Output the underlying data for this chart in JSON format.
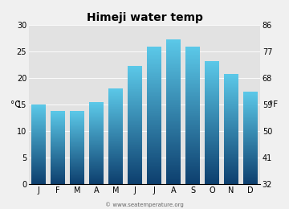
{
  "title": "Himeji water temp",
  "months": [
    "J",
    "F",
    "M",
    "A",
    "M",
    "J",
    "J",
    "A",
    "S",
    "O",
    "N",
    "D"
  ],
  "values_c": [
    15.0,
    13.8,
    13.8,
    15.4,
    18.1,
    22.3,
    25.9,
    27.3,
    25.9,
    23.2,
    20.8,
    17.4
  ],
  "ylim_c": [
    0,
    30
  ],
  "yticks_c": [
    0,
    5,
    10,
    15,
    20,
    25,
    30
  ],
  "yticks_f": [
    32,
    41,
    50,
    59,
    68,
    77,
    86
  ],
  "ylabel_left": "°C",
  "ylabel_right": "°F",
  "bar_color_top": "#5bc8e8",
  "bar_color_bottom": "#0d3f6e",
  "bg_color": "#f0f0f0",
  "plot_bg_color": "#e2e2e2",
  "title_fontsize": 10,
  "tick_fontsize": 7,
  "label_fontsize": 7.5,
  "watermark": "© www.seatemperature.org"
}
